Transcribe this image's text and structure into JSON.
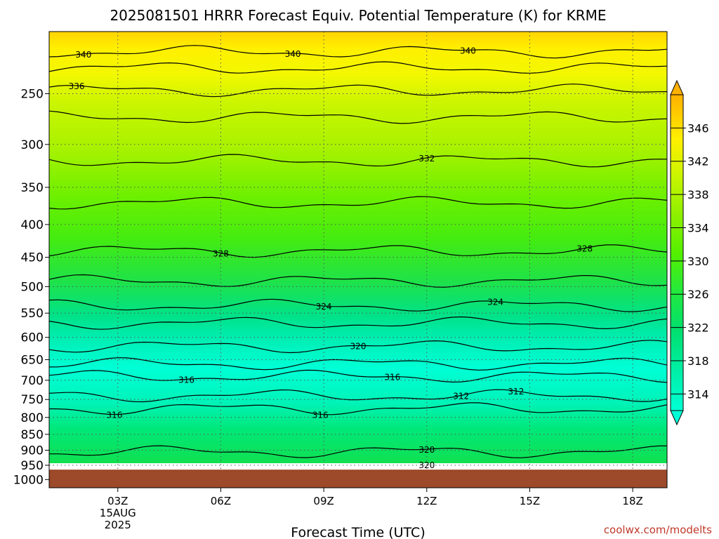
{
  "chart_data": {
    "type": "heatmap",
    "title": "2025081501 HRRR Forecast Equiv. Potential Temperature (K) for KRME",
    "xlabel": "Forecast Time (UTC)",
    "ylabel": "",
    "credit": "coolwx.com/modelts",
    "x_ticks": [
      {
        "hour": 3,
        "label": "03Z",
        "sub1": "15AUG",
        "sub2": "2025"
      },
      {
        "hour": 6,
        "label": "06Z"
      },
      {
        "hour": 9,
        "label": "09Z"
      },
      {
        "hour": 12,
        "label": "12Z"
      },
      {
        "hour": 15,
        "label": "15Z"
      },
      {
        "hour": 18,
        "label": "18Z"
      }
    ],
    "xlim_hours": [
      1,
      19
    ],
    "y_ticks": [
      250,
      300,
      350,
      400,
      450,
      500,
      550,
      600,
      650,
      700,
      750,
      800,
      850,
      900,
      950,
      1000
    ],
    "y_scale": "log",
    "ylim_hPa": [
      200,
      1030
    ],
    "ground_level_hPa": 965,
    "ground_color": "#9c4a2a",
    "grid": true,
    "colorbar": {
      "ticks": [
        314,
        318,
        322,
        326,
        330,
        334,
        338,
        342,
        346
      ],
      "tick_labels": [
        "314",
        "318",
        "322",
        "326",
        "330",
        "334",
        "338",
        "342",
        "346"
      ],
      "range": [
        312,
        350
      ],
      "colors": [
        "#00ffd0",
        "#00f0a0",
        "#00e070",
        "#20e840",
        "#55f000",
        "#8ef000",
        "#c8f500",
        "#f0f000",
        "#ffd800",
        "#ffb000"
      ]
    },
    "contours": [
      {
        "level": 340,
        "p": 215,
        "labels": [
          {
            "h": 2.0,
            "text": "340"
          },
          {
            "h": 8.1,
            "text": "340"
          },
          {
            "h": 13.2,
            "text": "340"
          }
        ]
      },
      {
        "level": 338,
        "p": 228,
        "labels": []
      },
      {
        "level": 336,
        "p": 247,
        "labels": [
          {
            "h": 1.8,
            "text": "336"
          }
        ]
      },
      {
        "level": 334,
        "p": 272,
        "labels": []
      },
      {
        "level": 332,
        "p": 318,
        "labels": [
          {
            "h": 12.0,
            "text": "332"
          }
        ]
      },
      {
        "level": 330,
        "p": 370,
        "labels": []
      },
      {
        "level": 328,
        "p": 440,
        "labels": [
          {
            "h": 6.0,
            "text": "328"
          },
          {
            "h": 16.6,
            "text": "328"
          }
        ]
      },
      {
        "level": 326,
        "p": 490,
        "labels": []
      },
      {
        "level": 324,
        "p": 535,
        "labels": [
          {
            "h": 9.0,
            "text": "324"
          },
          {
            "h": 14.0,
            "text": "324"
          }
        ]
      },
      {
        "level": 322,
        "p": 570,
        "labels": []
      },
      {
        "level": 320,
        "p": 620,
        "labels": [
          {
            "h": 10.0,
            "text": "320"
          }
        ]
      },
      {
        "level": 318,
        "p": 660,
        "labels": []
      },
      {
        "level": 316,
        "p": 690,
        "labels": [
          {
            "h": 5.0,
            "text": "316"
          },
          {
            "h": 11.0,
            "text": "316"
          }
        ]
      },
      {
        "level": 312,
        "p": 740,
        "labels": [
          {
            "h": 13.0,
            "text": "312"
          },
          {
            "h": 14.6,
            "text": "312"
          }
        ]
      },
      {
        "level": 316,
        "p": 775,
        "labels": [
          {
            "h": 2.9,
            "text": "316"
          },
          {
            "h": 8.9,
            "text": "316"
          }
        ]
      },
      {
        "level": 320,
        "p": 905,
        "labels": [
          {
            "h": 12.0,
            "text": "320"
          },
          {
            "h": 12.0,
            "text": "320"
          },
          {
            "h": 4.0,
            "text": "320"
          }
        ]
      }
    ]
  }
}
